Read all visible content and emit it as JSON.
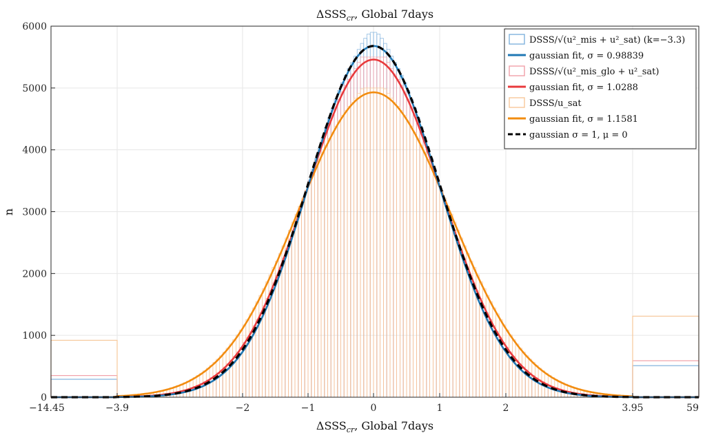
{
  "chart_data": {
    "type": "bar",
    "title": "ΔSSS",
    "title_sub": "cr",
    "title_rest": ", Global 7days",
    "xlabel": "ΔSSS",
    "xlabel_sub": "cr",
    "xlabel_rest": ", Global 7days",
    "ylabel": "n",
    "ylim": [
      0,
      6000
    ],
    "yticks": [
      0,
      1000,
      2000,
      3000,
      4000,
      5000,
      6000
    ],
    "xticks": [
      "-14.45",
      "-3.9",
      "-2",
      "-1",
      "0",
      "1",
      "2",
      "3.95",
      "59"
    ],
    "grid": true,
    "legend_position": "top-right",
    "legend": [
      {
        "label": "DSSS/√(u²_mis + u²_sat) (k=−3.3)",
        "kind": "hist",
        "color": "#7fb2dd"
      },
      {
        "label": "gaussian fit, σ = 0.98839",
        "kind": "line",
        "color": "#1f77b4"
      },
      {
        "label": "DSSS/√(u²_mis_glo + u²_sat)",
        "kind": "hist",
        "color": "#f1a0a8"
      },
      {
        "label": "gaussian fit, σ = 1.0288",
        "kind": "line",
        "color": "#e8393c"
      },
      {
        "label": "DSSS/u_sat",
        "kind": "hist",
        "color": "#f7c79a"
      },
      {
        "label": "gaussian fit, σ = 1.1581",
        "kind": "line",
        "color": "#f28c0f"
      },
      {
        "label": "gaussian σ = 1, μ = 0",
        "kind": "dashed",
        "color": "#000000"
      }
    ],
    "series": [
      {
        "name": "DSSS/√(u²_mis + u²_sat) (k=−3.3)",
        "kind": "histogram",
        "color": "#7fb2dd",
        "tail_left_count": 290,
        "tail_right_count": 510,
        "peak": 5900
      },
      {
        "name": "gaussian fit, σ = 0.98839",
        "kind": "gaussian",
        "sigma": 0.98839,
        "amplitude": 5680,
        "color": "#1f77b4"
      },
      {
        "name": "DSSS/√(u²_mis_glo + u²_sat)",
        "kind": "histogram",
        "color": "#f1a0a8",
        "tail_left_count": 350,
        "tail_right_count": 590,
        "peak": 5500
      },
      {
        "name": "gaussian fit, σ = 1.0288",
        "kind": "gaussian",
        "sigma": 1.0288,
        "amplitude": 5460,
        "color": "#e8393c"
      },
      {
        "name": "DSSS/u_sat",
        "kind": "histogram",
        "color": "#f7c79a",
        "tail_left_count": 920,
        "tail_right_count": 1310,
        "peak": 5000
      },
      {
        "name": "gaussian fit, σ = 1.1581",
        "kind": "gaussian",
        "sigma": 1.1581,
        "amplitude": 4930,
        "color": "#f28c0f"
      },
      {
        "name": "gaussian σ = 1, μ = 0",
        "kind": "gaussian",
        "sigma": 1,
        "amplitude": 5680,
        "color": "#000000",
        "dashed": true
      }
    ]
  }
}
